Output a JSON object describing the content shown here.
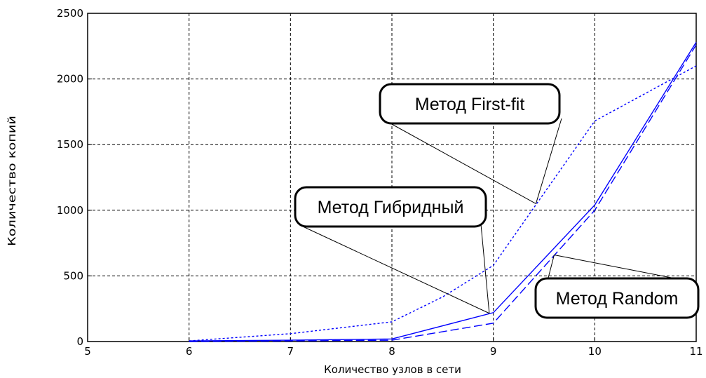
{
  "chart_data": {
    "type": "line",
    "xlabel": "Количество узлов в сети",
    "ylabel": "Количество копий",
    "xlim": [
      5,
      11
    ],
    "ylim": [
      0,
      2500
    ],
    "grid": true,
    "xticks": [
      "5",
      "6",
      "7",
      "8",
      "9",
      "10",
      "11"
    ],
    "yticks": [
      "0",
      "500",
      "1000",
      "1500",
      "2000",
      "2500"
    ],
    "series": [
      {
        "style": "dotted",
        "color": "#0000ff",
        "x": [
          6,
          7,
          8,
          8.5,
          9,
          10,
          11
        ],
        "y": [
          5,
          60,
          150,
          340,
          580,
          1680,
          2100
        ]
      },
      {
        "style": "solid",
        "color": "#0000ff",
        "x": [
          6,
          7,
          8,
          9,
          10,
          11
        ],
        "y": [
          5,
          10,
          20,
          220,
          1040,
          2280
        ]
      },
      {
        "style": "dashed",
        "color": "#0000ff",
        "x": [
          6,
          7,
          8,
          9,
          10,
          11
        ],
        "y": [
          0,
          5,
          10,
          140,
          1000,
          2260
        ]
      }
    ],
    "annotations": [
      {
        "text": "Метод First-fit",
        "points_to": [
          [
            9.42,
            1050
          ]
        ]
      },
      {
        "text": "Метод Гибридный",
        "points_to": [
          [
            8.96,
            215
          ]
        ]
      },
      {
        "text": "Метод Random",
        "points_to": [
          [
            9.6,
            660
          ]
        ]
      }
    ]
  }
}
